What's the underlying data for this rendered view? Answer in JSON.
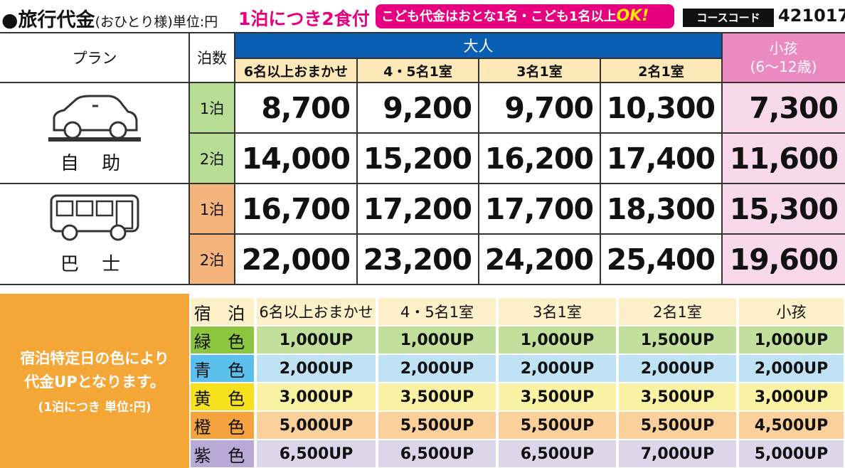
{
  "header": {
    "title": "●旅行代金",
    "title_note": "(おひとり様)単位:円",
    "meal_note": "1泊につき2食付",
    "child_note": "こども代金はおとな1名・こども1名以上",
    "child_note_ok": "OK!",
    "course_code_label": "コースコード",
    "course_code": "421017"
  },
  "price_table": {
    "col_plan": "プラン",
    "col_nights": "泊数",
    "adult_group": "大人",
    "child_group_line1": "小孩",
    "child_group_line2": "(6〜12歳)",
    "adult_columns": [
      "6名以上おまかせ",
      "4・5名1室",
      "3名1室",
      "2名1室"
    ],
    "plans": [
      {
        "name": "自 助",
        "icon": "car-icon",
        "rows": [
          {
            "nights": "1泊",
            "prices": [
              "8,700",
              "9,200",
              "9,700",
              "10,300"
            ],
            "child": "7,300"
          },
          {
            "nights": "2泊",
            "prices": [
              "14,000",
              "15,200",
              "16,200",
              "17,400"
            ],
            "child": "11,600"
          }
        ]
      },
      {
        "name": "巴 士",
        "icon": "bus-icon",
        "rows": [
          {
            "nights": "1泊",
            "prices": [
              "16,700",
              "17,200",
              "17,700",
              "18,300"
            ],
            "child": "15,300"
          },
          {
            "nights": "2泊",
            "prices": [
              "22,000",
              "23,200",
              "24,200",
              "25,400"
            ],
            "child": "19,600"
          }
        ]
      }
    ],
    "colors": {
      "green": "#b8dd94",
      "orange": "#f6b47d",
      "blue_header": "#0a5fb4",
      "child_header": "#ea8ac1",
      "child_cells": "#f7d9ea",
      "sub_header": "#fde9b8"
    }
  },
  "surcharge": {
    "note_line1": "宿泊特定日の色により",
    "note_line2": "代金UPとなります。",
    "note_line3": "(1泊につき 単位:円)",
    "headers": [
      "宿 泊",
      "6名以上おまかせ",
      "4・5名1室",
      "3名1室",
      "2名1室",
      "小孩"
    ],
    "rows": [
      {
        "label": "緑 色",
        "color": "#c3df9c",
        "label_color": "#8cc63f",
        "values": [
          "1,000UP",
          "1,000UP",
          "1,000UP",
          "1,500UP",
          "1,000UP"
        ]
      },
      {
        "label": "青 色",
        "color": "#bfe3f5",
        "label_color": "#5bc0eb",
        "values": [
          "2,000UP",
          "2,000UP",
          "2,000UP",
          "2,000UP",
          "2,000UP"
        ]
      },
      {
        "label": "黄 色",
        "color": "#fbf3a4",
        "label_color": "#f7e11d",
        "values": [
          "3,000UP",
          "3,500UP",
          "3,500UP",
          "3,500UP",
          "3,000UP"
        ]
      },
      {
        "label": "橙 色",
        "color": "#fbd09a",
        "label_color": "#f5a33c",
        "values": [
          "5,000UP",
          "5,500UP",
          "5,500UP",
          "5,500UP",
          "4,500UP"
        ]
      },
      {
        "label": "紫 色",
        "color": "#dcd6eb",
        "label_color": "#b9a9d6",
        "values": [
          "6,500UP",
          "6,500UP",
          "6,500UP",
          "7,000UP",
          "5,000UP"
        ]
      }
    ],
    "header_color": "#fdf0c8"
  }
}
